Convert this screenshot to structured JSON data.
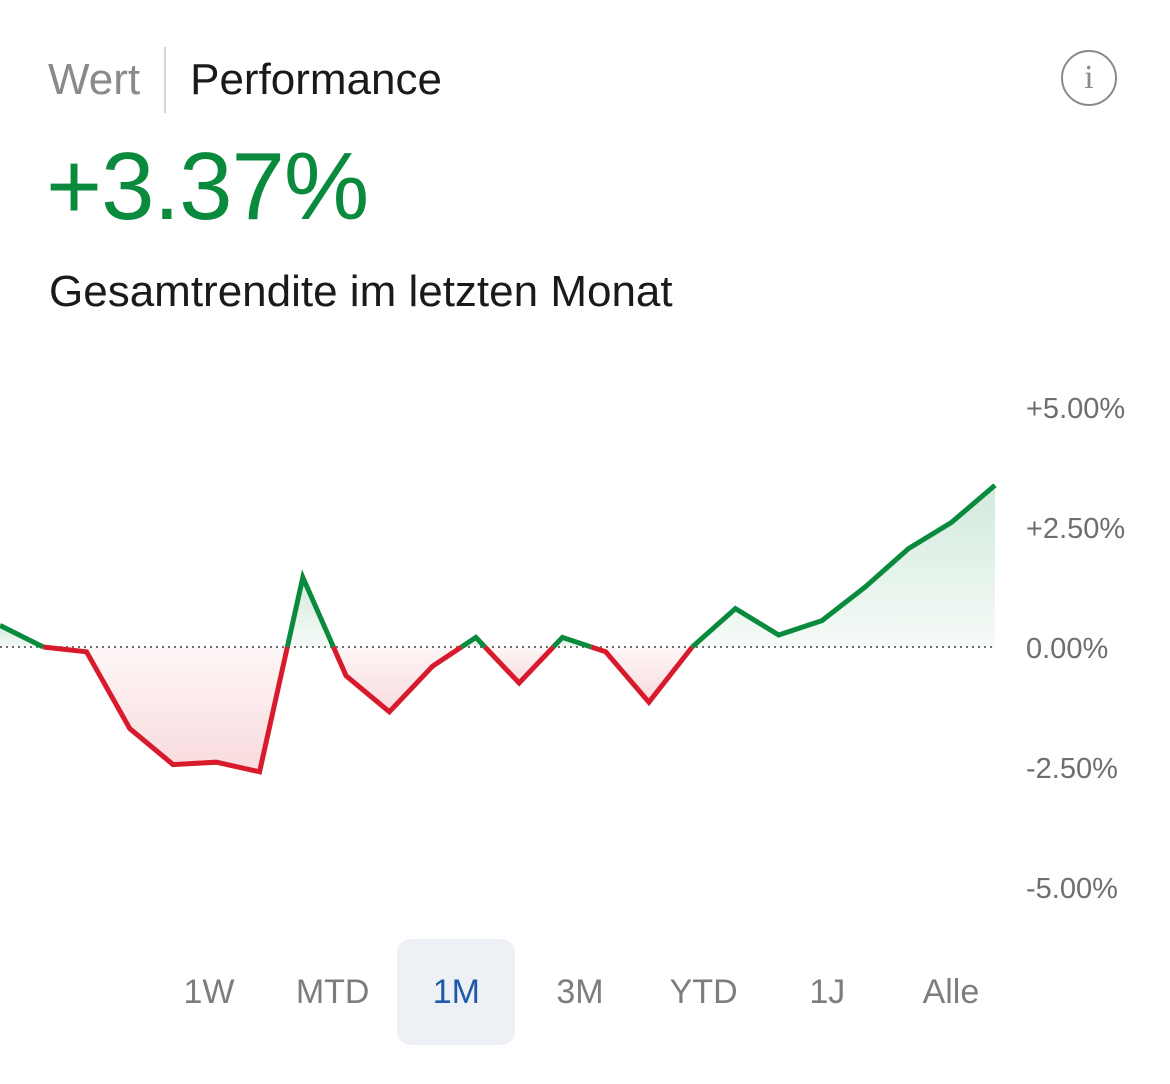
{
  "header": {
    "tab_wert": "Wert",
    "tab_performance": "Performance",
    "active_tab": "Performance",
    "info_icon": "info-icon"
  },
  "summary": {
    "value": "+3.37%",
    "label": "Gesamtrendite im letzten Monat"
  },
  "colors": {
    "positive": "#0a8a3c",
    "negative": "#d81b2c",
    "active_range": "#1e5aa8"
  },
  "range_selector": {
    "options": [
      "1W",
      "MTD",
      "1M",
      "3M",
      "YTD",
      "1J",
      "Alle"
    ],
    "selected": "1M"
  },
  "chart_data": {
    "type": "line",
    "title": "",
    "xlabel": "",
    "ylabel": "",
    "ylim": [
      -5,
      5
    ],
    "y_ticks": [
      5,
      2.5,
      0,
      -2.5,
      -5
    ],
    "y_tick_labels": [
      "+5.00%",
      "+2.50%",
      "0.00%",
      "-2.50%",
      "-5.00%"
    ],
    "baseline": 0,
    "grid": false,
    "fill_to_baseline": true,
    "series": [
      {
        "values": [
          0.45,
          0.0,
          -0.1,
          -1.7,
          -2.45,
          -2.4,
          -2.6,
          1.45,
          -0.6,
          -1.35,
          -0.4,
          0.2,
          -0.75,
          0.2,
          -0.1,
          -1.15,
          0.0,
          0.8,
          0.25,
          0.55,
          1.25,
          2.05,
          2.6,
          3.37
        ]
      }
    ]
  }
}
